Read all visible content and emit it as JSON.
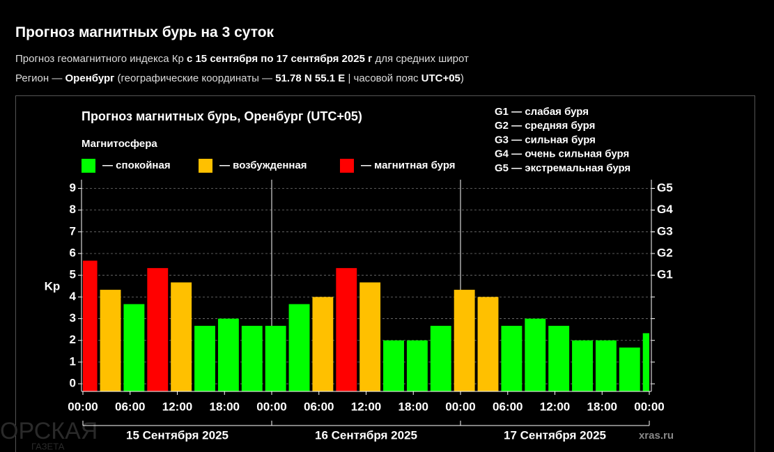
{
  "header": {
    "title": "Прогноз магнитных бурь на 3 суток",
    "subtitle": [
      "Прогноз геомагнитного индекса Кр",
      "с 15 сентября по 17 сентября 2025 г",
      "для средних широт"
    ],
    "region": [
      "Регион —",
      "Оренбург",
      "(географические координаты —",
      "51.78 N 55.1 E",
      "| часовой пояс",
      "UTC+05",
      ")"
    ]
  },
  "logo": {
    "name": "ОРСКАЯ",
    "subtitle": "ГАЗЕТА"
  },
  "chart_data": {
    "type": "bar",
    "title": "Прогноз магнитных бурь, Оренбург (UTC+05)",
    "legend_title": "Магнитосфера",
    "legend": [
      {
        "label": "— спокойная",
        "color": "#00ff00"
      },
      {
        "label": "— возбужденная",
        "color": "#ffc000"
      },
      {
        "label": "— магнитная буря",
        "color": "#ff0000"
      }
    ],
    "scale_legend": [
      "G1 — слабая буря",
      "G2 — средняя буря",
      "G3 — сильная буря",
      "G4 — очень сильная буря",
      "G5 — экстремальная буря"
    ],
    "ylabel": "Kp",
    "x": [
      -1,
      2,
      5,
      8,
      11,
      14,
      17,
      20,
      23,
      26,
      29,
      32,
      35,
      38,
      41,
      44,
      47,
      50,
      53,
      56,
      59,
      62,
      65,
      68,
      71
    ],
    "values": [
      5.67,
      4.33,
      3.67,
      5.33,
      4.67,
      2.67,
      3,
      2.67,
      2.67,
      3.67,
      4,
      5.33,
      4.67,
      2,
      2,
      2.67,
      4.33,
      4,
      2.67,
      3,
      2.67,
      2,
      2,
      1.67,
      2.33
    ],
    "colors": [
      "#ff0000",
      "#ffc000",
      "#00ff00",
      "#ff0000",
      "#ffc000",
      "#00ff00",
      "#00ff00",
      "#00ff00",
      "#00ff00",
      "#00ff00",
      "#ffc000",
      "#ff0000",
      "#ffc000",
      "#00ff00",
      "#00ff00",
      "#00ff00",
      "#ffc000",
      "#ffc000",
      "#00ff00",
      "#00ff00",
      "#00ff00",
      "#00ff00",
      "#00ff00",
      "#00ff00",
      "#00ff00"
    ],
    "bar_width": 3,
    "xlim": [
      0,
      72
    ],
    "xticks": [
      {
        "value": 0,
        "label": "00:00"
      },
      {
        "value": 6,
        "label": "06:00"
      },
      {
        "value": 12,
        "label": "12:00"
      },
      {
        "value": 18,
        "label": "18:00"
      },
      {
        "value": 24,
        "label": "00:00"
      },
      {
        "value": 30,
        "label": "06:00"
      },
      {
        "value": 36,
        "label": "12:00"
      },
      {
        "value": 42,
        "label": "18:00"
      },
      {
        "value": 48,
        "label": "00:00"
      },
      {
        "value": 54,
        "label": "06:00"
      },
      {
        "value": 60,
        "label": "12:00"
      },
      {
        "value": 66,
        "label": "18:00"
      },
      {
        "value": 72,
        "label": "00:00"
      }
    ],
    "dates": [
      {
        "label": "15 Сентября 2025",
        "start": 0,
        "end": 24
      },
      {
        "label": "16 Сентября 2025",
        "start": 24,
        "end": 48
      },
      {
        "label": "17 Сентября 2025",
        "start": 48,
        "end": 72
      }
    ],
    "ylim": [
      -0.35,
      9.4
    ],
    "yticks": [
      0,
      1,
      2,
      3,
      4,
      5,
      6,
      7,
      8,
      9
    ],
    "y2lim": [
      -0.35,
      9.4
    ],
    "y2ticks": [
      {
        "value": 5,
        "label": "G1"
      },
      {
        "value": 6,
        "label": "G2"
      },
      {
        "value": 7,
        "label": "G3"
      },
      {
        "value": 8,
        "label": "G4"
      },
      {
        "value": 9,
        "label": "G5"
      }
    ],
    "grid": true,
    "source": "xras.ru"
  }
}
